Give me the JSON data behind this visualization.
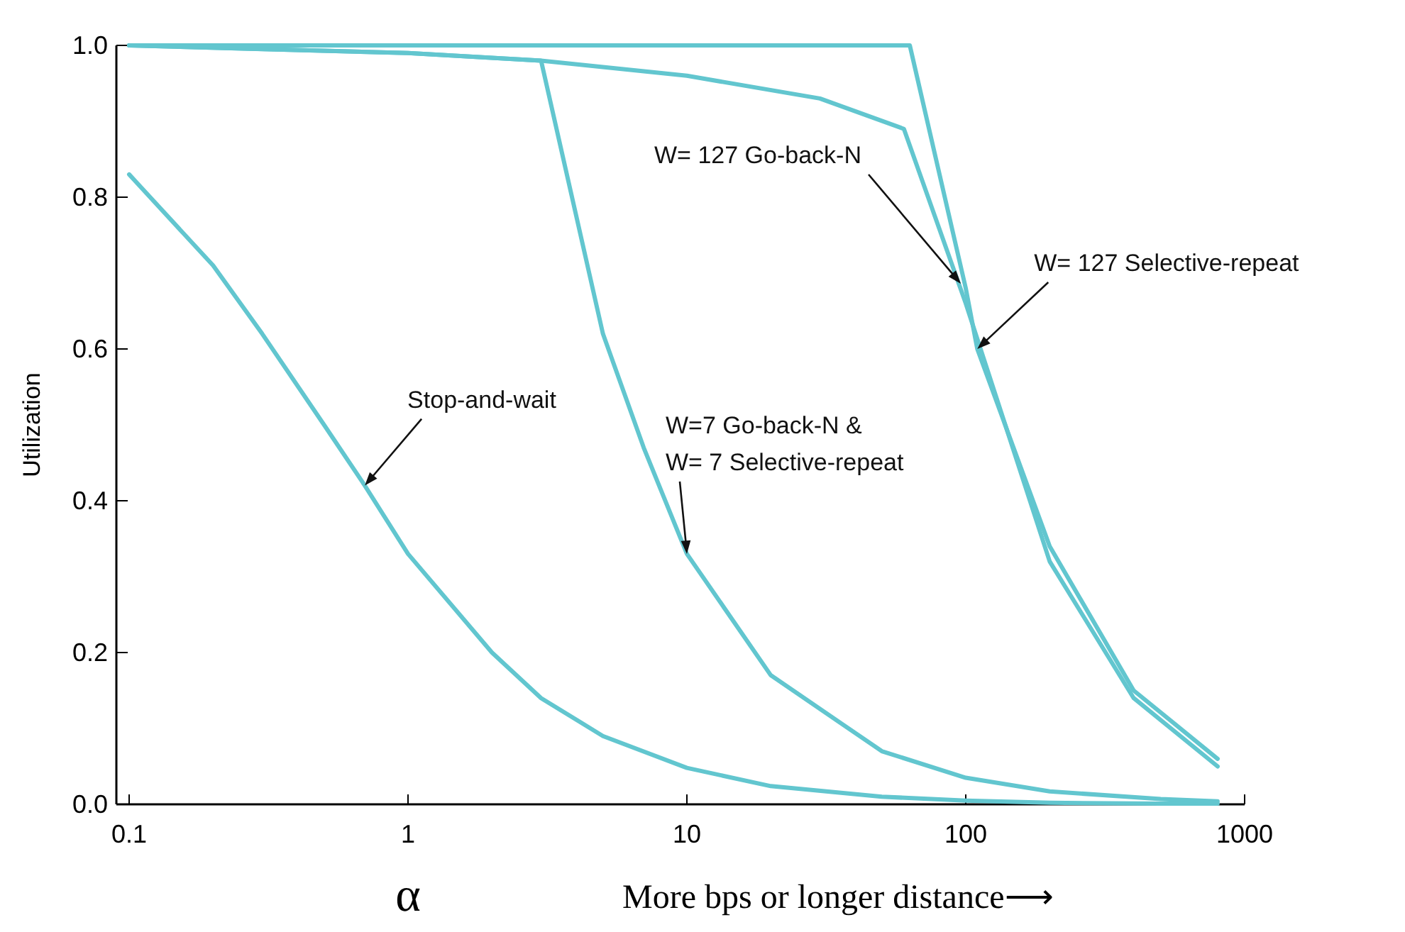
{
  "chart_data": {
    "type": "line",
    "xlabel": "α",
    "ylabel": "Utilization",
    "log": "x",
    "grid": false,
    "marker": "none",
    "line_style": "solid",
    "xlim": [
      0.09,
      1000
    ],
    "ylim": [
      0,
      1
    ],
    "xticks": [
      0.1,
      1,
      10,
      100,
      1000
    ],
    "yticks": [
      {
        "value": 0,
        "label": "0.0"
      },
      {
        "value": 0.2,
        "label": "0.2"
      },
      {
        "value": 0.4,
        "label": "0.4"
      },
      {
        "value": 0.6,
        "label": "0.6"
      },
      {
        "value": 0.8,
        "label": "0.8"
      },
      {
        "value": 1,
        "label": "1.0"
      }
    ],
    "series": [
      {
        "color": "#62c6cf",
        "x": [
          0.1,
          0.2,
          0.3,
          0.5,
          0.7,
          1,
          2,
          3,
          5,
          10,
          20,
          50,
          100,
          200,
          500,
          800
        ],
        "values": [
          0.83,
          0.71,
          0.62,
          0.5,
          0.42,
          0.33,
          0.2,
          0.14,
          0.09,
          0.048,
          0.024,
          0.01,
          0.005,
          0.002,
          0.001,
          0.001
        ]
      },
      {
        "color": "#62c6cf",
        "x": [
          0.1,
          0.3,
          1,
          3,
          5,
          7,
          10,
          20,
          50,
          100,
          200,
          500,
          800
        ],
        "values": [
          1.0,
          0.995,
          0.99,
          0.98,
          0.62,
          0.47,
          0.33,
          0.17,
          0.07,
          0.035,
          0.017,
          0.007,
          0.004
        ]
      },
      {
        "color": "#62c6cf",
        "x": [
          0.1,
          1,
          3,
          10,
          30,
          60,
          100,
          200,
          400,
          800
        ],
        "values": [
          1.0,
          0.99,
          0.98,
          0.96,
          0.93,
          0.89,
          0.66,
          0.32,
          0.14,
          0.05
        ]
      },
      {
        "color": "#62c6cf",
        "x": [
          0.1,
          63,
          100,
          110,
          200,
          400,
          800
        ],
        "values": [
          1.0,
          1.0,
          0.68,
          0.6,
          0.34,
          0.15,
          0.06
        ]
      }
    ],
    "annotations": [
      {
        "text": "Stop-and-wait",
        "x": 0.7,
        "y": 0.42
      },
      {
        "text": "W=7 Go-back-N &\nW= 7 Selective-repeat",
        "x": 10,
        "y": 0.33
      },
      {
        "text": "W= 127 Go-back-N",
        "x": 96,
        "y": 0.686
      },
      {
        "text": "W= 127 Selective-repeat",
        "x": 110,
        "y": 0.6
      },
      "More bps or longer distance⟶"
    ]
  }
}
